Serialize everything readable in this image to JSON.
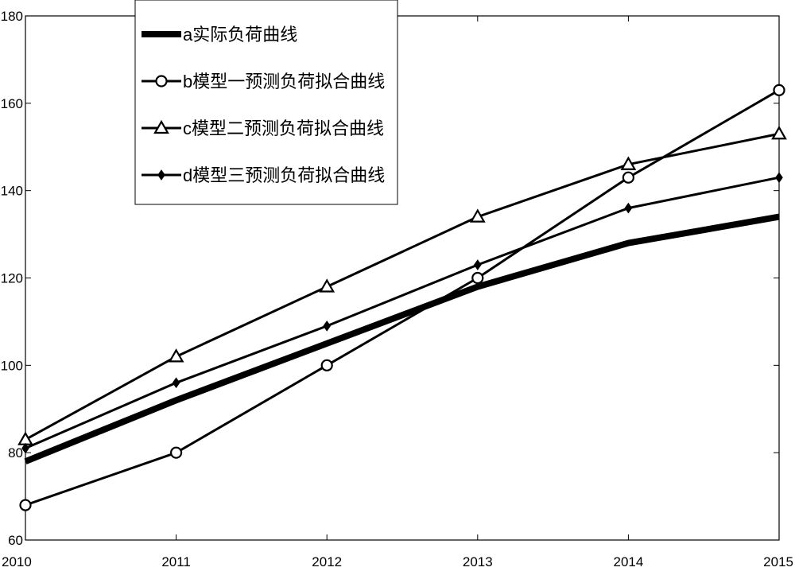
{
  "chart_data": {
    "type": "line",
    "title": "",
    "xlabel": "",
    "ylabel": "",
    "x": [
      2010,
      2011,
      2012,
      2013,
      2014,
      2015
    ],
    "xlim": [
      2010,
      2015
    ],
    "ylim": [
      60,
      180
    ],
    "x_ticks": [
      "2010",
      "2011",
      "2012",
      "2013",
      "2014",
      "2015"
    ],
    "y_ticks": [
      "60",
      "80",
      "100",
      "120",
      "140",
      "160",
      "180"
    ],
    "y_tick_values": [
      60,
      80,
      100,
      120,
      140,
      160,
      180
    ],
    "grid": false,
    "legend_position": "top-left",
    "series": [
      {
        "name": "a实际负荷曲线",
        "marker": "none",
        "line_width": "thick",
        "color": "#000000",
        "values": [
          78,
          92,
          105,
          118,
          128,
          134
        ]
      },
      {
        "name": "b模型一预测负荷拟合曲线",
        "marker": "circle",
        "line_width": "normal",
        "color": "#000000",
        "values": [
          68,
          80,
          100,
          120,
          143,
          163
        ]
      },
      {
        "name": "c模型二预测负荷拟合曲线",
        "marker": "triangle",
        "line_width": "normal",
        "color": "#000000",
        "values": [
          83,
          102,
          118,
          134,
          146,
          153
        ]
      },
      {
        "name": "d模型三预测负荷拟合曲线",
        "marker": "diamond",
        "line_width": "normal",
        "color": "#000000",
        "values": [
          81,
          96,
          109,
          123,
          136,
          143
        ]
      }
    ]
  }
}
